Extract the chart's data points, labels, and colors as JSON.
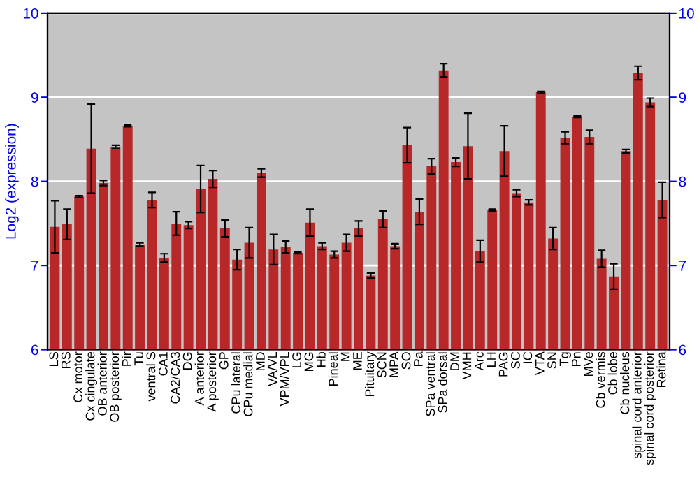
{
  "chart_data": {
    "type": "bar",
    "ylabel": "Log2 (expression)",
    "categories": [
      "LS",
      "RS",
      "Cx motor",
      "Cx cingulate",
      "OB anterior",
      "OB posterior",
      "Pir",
      "Tu",
      "ventral S",
      "CA1",
      "CA2/CA3",
      "DG",
      "A anterior",
      "A posterior",
      "GP",
      "CPu lateral",
      "CPu medial",
      "MD",
      "VA/VL",
      "VPM/VPL",
      "LG",
      "MG",
      "Hb",
      "Pineal",
      "M",
      "ME",
      "Pituitary",
      "SCN",
      "MPA",
      "SO",
      "Pa",
      "SPa ventral",
      "SPa dorsal",
      "DM",
      "VMH",
      "Arc",
      "LH",
      "PAG",
      "SC",
      "IC",
      "VTA",
      "SN",
      "Tg",
      "Pn",
      "MVe",
      "Cb vermis",
      "Cb lobe",
      "Cb nucleus",
      "spinal cord anterior",
      "spinal cord posterior",
      "Retina"
    ],
    "values": [
      7.46,
      7.49,
      7.82,
      8.39,
      7.98,
      8.41,
      8.66,
      7.25,
      7.78,
      7.09,
      7.5,
      7.48,
      7.91,
      8.03,
      7.44,
      7.07,
      7.27,
      8.1,
      7.19,
      7.22,
      7.15,
      7.51,
      7.23,
      7.13,
      7.27,
      7.44,
      6.88,
      7.55,
      7.23,
      8.43,
      7.64,
      8.18,
      9.32,
      8.23,
      8.42,
      7.17,
      7.66,
      8.36,
      7.86,
      7.75,
      9.06,
      7.32,
      8.52,
      8.77,
      8.53,
      7.08,
      6.87,
      8.36,
      9.29,
      8.94,
      7.78
    ],
    "errors": [
      0.31,
      0.18,
      0.01,
      0.53,
      0.03,
      0.02,
      0.01,
      0.02,
      0.09,
      0.05,
      0.14,
      0.04,
      0.28,
      0.1,
      0.1,
      0.12,
      0.18,
      0.05,
      0.18,
      0.07,
      0.01,
      0.16,
      0.04,
      0.04,
      0.1,
      0.09,
      0.03,
      0.1,
      0.03,
      0.21,
      0.15,
      0.09,
      0.08,
      0.05,
      0.39,
      0.13,
      0.01,
      0.3,
      0.04,
      0.03,
      0.01,
      0.13,
      0.07,
      0.01,
      0.08,
      0.1,
      0.15,
      0.02,
      0.08,
      0.05,
      0.21
    ],
    "color": "#b82828",
    "ylim": [
      6,
      10
    ],
    "yticks": [
      6,
      7,
      8,
      9,
      10
    ],
    "y2lim": [
      6,
      10
    ],
    "y2ticks": [
      6,
      7,
      8,
      9,
      10
    ],
    "grid": "y"
  }
}
